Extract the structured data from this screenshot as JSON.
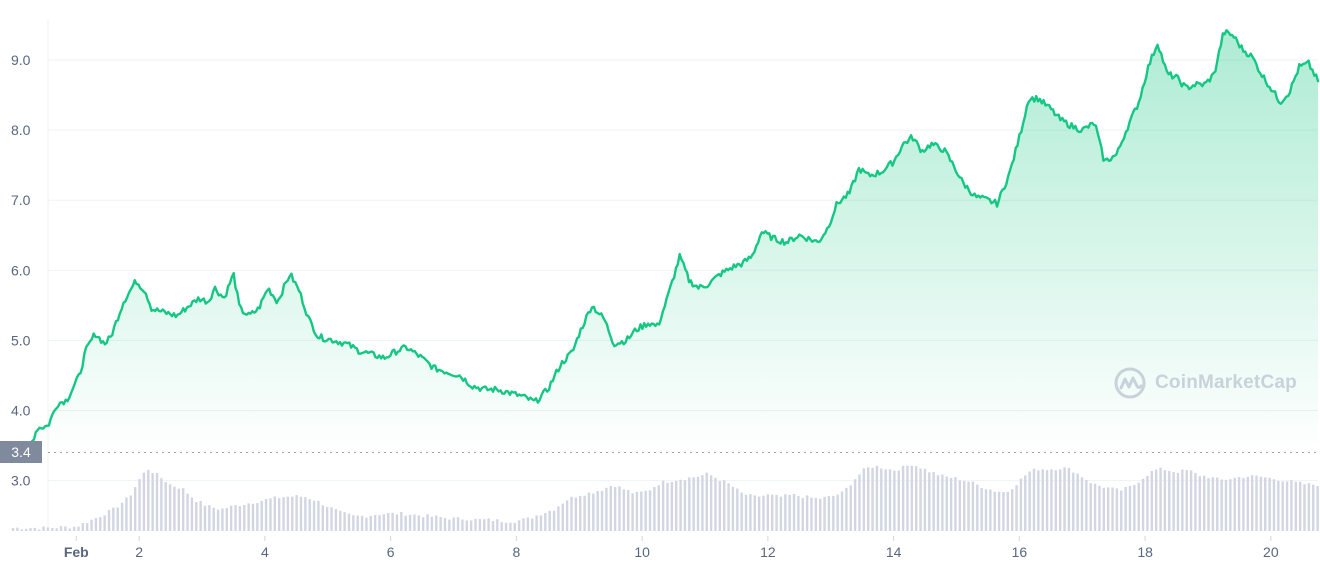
{
  "chart_data": {
    "type": "area",
    "x_unit": "date",
    "x": [
      "Feb 1",
      "Feb 1.5",
      "Feb 2",
      "Feb 2.5",
      "Feb 3",
      "Feb 3.5",
      "Feb 4",
      "Feb 4.5",
      "Feb 5",
      "Feb 5.5",
      "Feb 6",
      "Feb 6.5",
      "Feb 7",
      "Feb 7.5",
      "Feb 8",
      "Feb 8.5",
      "Feb 9",
      "Feb 9.5",
      "Feb 10",
      "Feb 10.5",
      "Feb 11",
      "Feb 11.5",
      "Feb 12",
      "Feb 12.5",
      "Feb 13",
      "Feb 13.5",
      "Feb 14",
      "Feb 14.5",
      "Feb 15",
      "Feb 15.5",
      "Feb 16",
      "Feb 16.5",
      "Feb 17",
      "Feb 17.5",
      "Feb 18",
      "Feb 18.5",
      "Feb 19",
      "Feb 19.5",
      "Feb 20",
      "Feb 20.5"
    ],
    "price_points": [
      [
        0.0,
        3.45
      ],
      [
        0.1,
        3.48
      ],
      [
        0.25,
        3.45
      ],
      [
        0.38,
        3.75
      ],
      [
        0.55,
        3.78
      ],
      [
        0.7,
        4.1
      ],
      [
        0.85,
        4.15
      ],
      [
        1.05,
        4.5
      ],
      [
        1.15,
        4.85
      ],
      [
        1.3,
        5.1
      ],
      [
        1.45,
        4.95
      ],
      [
        1.55,
        5.05
      ],
      [
        1.75,
        5.55
      ],
      [
        1.95,
        5.85
      ],
      [
        2.1,
        5.7
      ],
      [
        2.2,
        5.45
      ],
      [
        2.4,
        5.4
      ],
      [
        2.6,
        5.35
      ],
      [
        2.8,
        5.5
      ],
      [
        2.95,
        5.6
      ],
      [
        3.1,
        5.55
      ],
      [
        3.2,
        5.75
      ],
      [
        3.35,
        5.6
      ],
      [
        3.5,
        5.95
      ],
      [
        3.6,
        5.45
      ],
      [
        3.75,
        5.35
      ],
      [
        3.9,
        5.45
      ],
      [
        4.05,
        5.75
      ],
      [
        4.2,
        5.55
      ],
      [
        4.4,
        5.95
      ],
      [
        4.55,
        5.7
      ],
      [
        4.7,
        5.3
      ],
      [
        4.85,
        5.05
      ],
      [
        5.1,
        5.0
      ],
      [
        5.3,
        4.95
      ],
      [
        5.5,
        4.85
      ],
      [
        5.7,
        4.8
      ],
      [
        5.9,
        4.75
      ],
      [
        6.1,
        4.85
      ],
      [
        6.25,
        4.9
      ],
      [
        6.45,
        4.78
      ],
      [
        6.7,
        4.6
      ],
      [
        6.9,
        4.55
      ],
      [
        7.1,
        4.5
      ],
      [
        7.3,
        4.35
      ],
      [
        7.5,
        4.3
      ],
      [
        7.7,
        4.3
      ],
      [
        7.9,
        4.25
      ],
      [
        8.1,
        4.2
      ],
      [
        8.3,
        4.12
      ],
      [
        8.5,
        4.3
      ],
      [
        8.7,
        4.65
      ],
      [
        8.9,
        4.85
      ],
      [
        9.0,
        5.1
      ],
      [
        9.2,
        5.5
      ],
      [
        9.4,
        5.3
      ],
      [
        9.55,
        4.95
      ],
      [
        9.75,
        5.0
      ],
      [
        9.9,
        5.15
      ],
      [
        10.1,
        5.25
      ],
      [
        10.25,
        5.2
      ],
      [
        10.4,
        5.6
      ],
      [
        10.6,
        6.2
      ],
      [
        10.75,
        5.85
      ],
      [
        10.9,
        5.75
      ],
      [
        11.05,
        5.8
      ],
      [
        11.25,
        5.95
      ],
      [
        11.45,
        6.05
      ],
      [
        11.6,
        6.1
      ],
      [
        11.75,
        6.2
      ],
      [
        11.9,
        6.55
      ],
      [
        12.1,
        6.45
      ],
      [
        12.3,
        6.4
      ],
      [
        12.5,
        6.5
      ],
      [
        12.65,
        6.45
      ],
      [
        12.8,
        6.4
      ],
      [
        12.95,
        6.6
      ],
      [
        13.1,
        6.95
      ],
      [
        13.3,
        7.1
      ],
      [
        13.45,
        7.45
      ],
      [
        13.6,
        7.35
      ],
      [
        13.8,
        7.4
      ],
      [
        14.0,
        7.55
      ],
      [
        14.15,
        7.8
      ],
      [
        14.3,
        7.9
      ],
      [
        14.45,
        7.7
      ],
      [
        14.6,
        7.8
      ],
      [
        14.8,
        7.72
      ],
      [
        14.95,
        7.5
      ],
      [
        15.1,
        7.25
      ],
      [
        15.3,
        7.05
      ],
      [
        15.5,
        7.0
      ],
      [
        15.65,
        6.95
      ],
      [
        15.85,
        7.4
      ],
      [
        16.0,
        7.9
      ],
      [
        16.15,
        8.45
      ],
      [
        16.3,
        8.45
      ],
      [
        16.5,
        8.3
      ],
      [
        16.65,
        8.15
      ],
      [
        16.85,
        8.05
      ],
      [
        17.0,
        8.0
      ],
      [
        17.2,
        8.1
      ],
      [
        17.35,
        7.55
      ],
      [
        17.55,
        7.65
      ],
      [
        17.7,
        8.0
      ],
      [
        17.9,
        8.4
      ],
      [
        18.05,
        8.9
      ],
      [
        18.2,
        9.25
      ],
      [
        18.35,
        8.8
      ],
      [
        18.5,
        8.75
      ],
      [
        18.65,
        8.6
      ],
      [
        18.8,
        8.65
      ],
      [
        18.95,
        8.65
      ],
      [
        19.1,
        8.8
      ],
      [
        19.25,
        9.4
      ],
      [
        19.4,
        9.35
      ],
      [
        19.55,
        9.15
      ],
      [
        19.7,
        9.05
      ],
      [
        19.85,
        8.8
      ],
      [
        20.0,
        8.6
      ],
      [
        20.15,
        8.4
      ],
      [
        20.3,
        8.55
      ],
      [
        20.45,
        8.9
      ],
      [
        20.6,
        8.95
      ],
      [
        20.75,
        8.7
      ]
    ],
    "volume_points": [
      [
        0.0,
        0.05
      ],
      [
        0.5,
        0.05
      ],
      [
        1.0,
        0.07
      ],
      [
        1.3,
        0.2
      ],
      [
        1.6,
        0.35
      ],
      [
        1.85,
        0.55
      ],
      [
        2.05,
        0.9
      ],
      [
        2.15,
        1.0
      ],
      [
        2.3,
        0.9
      ],
      [
        2.5,
        0.75
      ],
      [
        2.7,
        0.68
      ],
      [
        2.9,
        0.5
      ],
      [
        3.1,
        0.4
      ],
      [
        3.3,
        0.35
      ],
      [
        3.5,
        0.4
      ],
      [
        3.7,
        0.44
      ],
      [
        3.9,
        0.48
      ],
      [
        4.1,
        0.52
      ],
      [
        4.3,
        0.55
      ],
      [
        4.5,
        0.56
      ],
      [
        4.65,
        0.55
      ],
      [
        4.8,
        0.5
      ],
      [
        5.0,
        0.4
      ],
      [
        5.2,
        0.3
      ],
      [
        5.4,
        0.24
      ],
      [
        5.6,
        0.24
      ],
      [
        5.8,
        0.27
      ],
      [
        6.0,
        0.28
      ],
      [
        6.2,
        0.28
      ],
      [
        6.4,
        0.26
      ],
      [
        6.6,
        0.24
      ],
      [
        6.8,
        0.22
      ],
      [
        7.0,
        0.2
      ],
      [
        7.2,
        0.2
      ],
      [
        7.4,
        0.18
      ],
      [
        7.6,
        0.18
      ],
      [
        7.8,
        0.16
      ],
      [
        8.0,
        0.16
      ],
      [
        8.2,
        0.2
      ],
      [
        8.4,
        0.28
      ],
      [
        8.6,
        0.35
      ],
      [
        8.8,
        0.5
      ],
      [
        9.0,
        0.58
      ],
      [
        9.2,
        0.62
      ],
      [
        9.4,
        0.68
      ],
      [
        9.55,
        0.75
      ],
      [
        9.7,
        0.68
      ],
      [
        9.9,
        0.6
      ],
      [
        10.1,
        0.65
      ],
      [
        10.3,
        0.78
      ],
      [
        10.5,
        0.82
      ],
      [
        10.7,
        0.85
      ],
      [
        10.9,
        0.88
      ],
      [
        11.05,
        0.92
      ],
      [
        11.2,
        0.85
      ],
      [
        11.4,
        0.75
      ],
      [
        11.6,
        0.6
      ],
      [
        11.8,
        0.55
      ],
      [
        12.0,
        0.58
      ],
      [
        12.2,
        0.55
      ],
      [
        12.4,
        0.58
      ],
      [
        12.6,
        0.55
      ],
      [
        12.8,
        0.52
      ],
      [
        13.0,
        0.55
      ],
      [
        13.2,
        0.62
      ],
      [
        13.4,
        0.85
      ],
      [
        13.55,
        1.0
      ],
      [
        13.7,
        1.05
      ],
      [
        13.85,
        1.02
      ],
      [
        14.0,
        0.98
      ],
      [
        14.15,
        1.02
      ],
      [
        14.3,
        1.08
      ],
      [
        14.45,
        1.02
      ],
      [
        14.6,
        0.95
      ],
      [
        14.8,
        0.88
      ],
      [
        15.0,
        0.85
      ],
      [
        15.2,
        0.8
      ],
      [
        15.4,
        0.72
      ],
      [
        15.6,
        0.65
      ],
      [
        15.8,
        0.62
      ],
      [
        16.0,
        0.8
      ],
      [
        16.15,
        0.95
      ],
      [
        16.3,
        1.0
      ],
      [
        16.5,
        1.0
      ],
      [
        16.7,
        1.02
      ],
      [
        16.85,
        0.98
      ],
      [
        17.0,
        0.88
      ],
      [
        17.2,
        0.75
      ],
      [
        17.4,
        0.7
      ],
      [
        17.6,
        0.65
      ],
      [
        17.8,
        0.72
      ],
      [
        18.0,
        0.88
      ],
      [
        18.15,
        0.98
      ],
      [
        18.3,
        1.0
      ],
      [
        18.5,
        0.95
      ],
      [
        18.7,
        0.98
      ],
      [
        18.85,
        0.9
      ],
      [
        19.0,
        0.88
      ],
      [
        19.2,
        0.82
      ],
      [
        19.4,
        0.85
      ],
      [
        19.6,
        0.88
      ],
      [
        19.8,
        0.88
      ],
      [
        20.0,
        0.85
      ],
      [
        20.2,
        0.82
      ],
      [
        20.4,
        0.78
      ],
      [
        20.6,
        0.75
      ],
      [
        20.75,
        0.75
      ]
    ],
    "y_ticks": [
      "3.0",
      "4.0",
      "5.0",
      "6.0",
      "7.0",
      "8.0",
      "9.0"
    ],
    "y_tick_values": [
      3,
      4,
      5,
      6,
      7,
      8,
      9
    ],
    "x_ticks": [
      "Feb",
      "2",
      "4",
      "6",
      "8",
      "10",
      "12",
      "14",
      "16",
      "18",
      "20"
    ],
    "x_tick_values": [
      1,
      2,
      4,
      6,
      8,
      10,
      12,
      14,
      16,
      18,
      20
    ],
    "xlim": [
      0.55,
      20.75
    ],
    "ylim": [
      2.3,
      9.5
    ],
    "start_price": "3.4",
    "start_price_value": 3.4,
    "grid": "horizontal",
    "colors": {
      "line": "#16c784",
      "area_top": "#16c784",
      "volume": "#d1d6e2",
      "grid": "#eff2f5",
      "tick_text": "#58667e",
      "reference_line": "#9aa3b3",
      "badge": "#808a9d"
    }
  },
  "watermark": {
    "text": "CoinMarketCap",
    "icon": "coinmarketcap-logo-icon"
  }
}
